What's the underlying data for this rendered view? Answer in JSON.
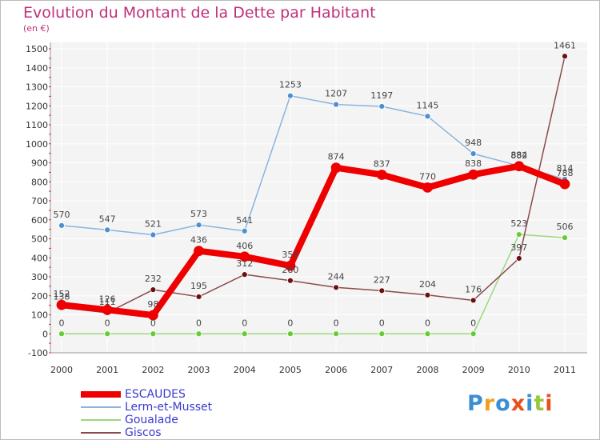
{
  "header": {
    "title": "Evolution du Montant de la Dette par Habitant",
    "subtitle": "(en €)"
  },
  "logo": {
    "text": "Proxiti",
    "colors": [
      "#3b8ed4",
      "#f0a01e",
      "#3b8ed4",
      "#e8501e",
      "#3b8ed4",
      "#9ac83c",
      "#e8501e"
    ]
  },
  "chart_data": {
    "type": "line",
    "title": "Evolution du Montant de la Dette par Habitant",
    "ylabel": "(en €)",
    "x": [
      "2000",
      "2001",
      "2002",
      "2003",
      "2004",
      "2005",
      "2006",
      "2007",
      "2008",
      "2009",
      "2010",
      "2011"
    ],
    "ylim": [
      -100,
      1500
    ],
    "yticks": [
      "-100",
      "0",
      "100",
      "200",
      "300",
      "400",
      "500",
      "600",
      "700",
      "800",
      "900",
      "1000",
      "1100",
      "1200",
      "1300",
      "1400",
      "1500"
    ],
    "grid": true,
    "legend": "bottom-left",
    "series": [
      {
        "name": "ESCAUDES",
        "color": "#ee0000",
        "marker": "#ee0000",
        "values": [
          152,
          126,
          98,
          436,
          406,
          358,
          874,
          837,
          770,
          838,
          882,
          788
        ],
        "labels": [
          "152",
          "126",
          "98",
          "436",
          "406",
          "358",
          "874",
          "837",
          "770",
          "838",
          "882",
          "788"
        ]
      },
      {
        "name": "Lerm-et-Musset",
        "color": "#8ab4dc",
        "marker": "#4a90d0",
        "values": [
          570,
          547,
          521,
          573,
          541,
          1253,
          1207,
          1197,
          1145,
          948,
          884,
          814
        ],
        "labels": [
          "570",
          "547",
          "521",
          "573",
          "541",
          "1253",
          "1207",
          "1197",
          "1145",
          "948",
          "884",
          "814"
        ]
      },
      {
        "name": "Goualade",
        "color": "#9cd87c",
        "marker": "#66cc33",
        "values": [
          0,
          0,
          0,
          0,
          0,
          0,
          0,
          0,
          0,
          0,
          523,
          506
        ],
        "labels": [
          "0",
          "0",
          "0",
          "0",
          "0",
          "0",
          "0",
          "0",
          "0",
          "0",
          "523",
          "506"
        ]
      },
      {
        "name": "Giscos",
        "color": "#8b4a4a",
        "marker": "#6b1010",
        "values": [
          138,
          111,
          232,
          195,
          312,
          280,
          244,
          227,
          204,
          176,
          397,
          1461
        ],
        "labels": [
          "138",
          "111",
          "232",
          "195",
          "312",
          "280",
          "244",
          "227",
          "204",
          "176",
          "397",
          "1461"
        ]
      }
    ]
  }
}
